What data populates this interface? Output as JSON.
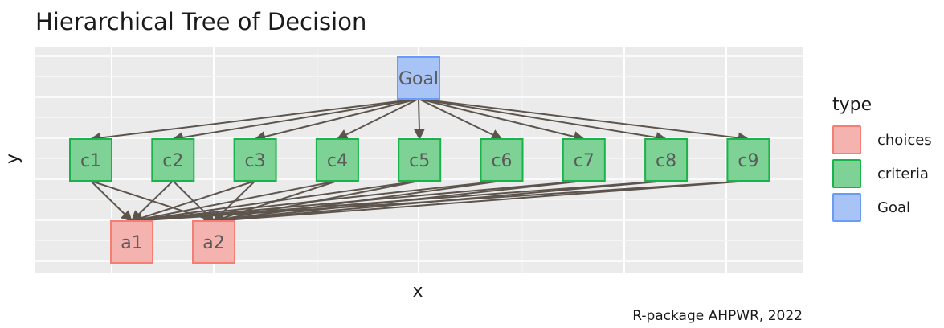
{
  "title": "Hierarchical Tree of Decision",
  "xlabel": "x",
  "ylabel": "y",
  "caption": "R-package AHPWR, 2022",
  "legend": {
    "title": "type",
    "items": [
      {
        "label": "choices",
        "fill": "#f4b3ae",
        "stroke": "#f27e75"
      },
      {
        "label": "criteria",
        "fill": "#7ed295",
        "stroke": "#1ab24a"
      },
      {
        "label": "Goal",
        "fill": "#a8c3f5",
        "stroke": "#6b9cf5"
      }
    ]
  },
  "colors": {
    "panel": "#ebebeb",
    "grid_major": "#ffffff",
    "edge": "#5d554d",
    "node_text": "#5a5a5a"
  },
  "nodes": [
    {
      "id": "Goal",
      "label": "Goal",
      "type": "Goal"
    },
    {
      "id": "c1",
      "label": "c1",
      "type": "criteria"
    },
    {
      "id": "c2",
      "label": "c2",
      "type": "criteria"
    },
    {
      "id": "c3",
      "label": "c3",
      "type": "criteria"
    },
    {
      "id": "c4",
      "label": "c4",
      "type": "criteria"
    },
    {
      "id": "c5",
      "label": "c5",
      "type": "criteria"
    },
    {
      "id": "c6",
      "label": "c6",
      "type": "criteria"
    },
    {
      "id": "c7",
      "label": "c7",
      "type": "criteria"
    },
    {
      "id": "c8",
      "label": "c8",
      "type": "criteria"
    },
    {
      "id": "c9",
      "label": "c9",
      "type": "criteria"
    },
    {
      "id": "a1",
      "label": "a1",
      "type": "choices"
    },
    {
      "id": "a2",
      "label": "a2",
      "type": "choices"
    }
  ],
  "edges": [
    [
      "Goal",
      "c1"
    ],
    [
      "Goal",
      "c2"
    ],
    [
      "Goal",
      "c3"
    ],
    [
      "Goal",
      "c4"
    ],
    [
      "Goal",
      "c5"
    ],
    [
      "Goal",
      "c6"
    ],
    [
      "Goal",
      "c7"
    ],
    [
      "Goal",
      "c8"
    ],
    [
      "Goal",
      "c9"
    ],
    [
      "c1",
      "a1"
    ],
    [
      "c1",
      "a2"
    ],
    [
      "c2",
      "a1"
    ],
    [
      "c2",
      "a2"
    ],
    [
      "c3",
      "a1"
    ],
    [
      "c3",
      "a2"
    ],
    [
      "c4",
      "a1"
    ],
    [
      "c4",
      "a2"
    ],
    [
      "c5",
      "a1"
    ],
    [
      "c5",
      "a2"
    ],
    [
      "c6",
      "a1"
    ],
    [
      "c6",
      "a2"
    ],
    [
      "c7",
      "a1"
    ],
    [
      "c7",
      "a2"
    ],
    [
      "c8",
      "a1"
    ],
    [
      "c8",
      "a2"
    ],
    [
      "c9",
      "a1"
    ],
    [
      "c9",
      "a2"
    ]
  ]
}
